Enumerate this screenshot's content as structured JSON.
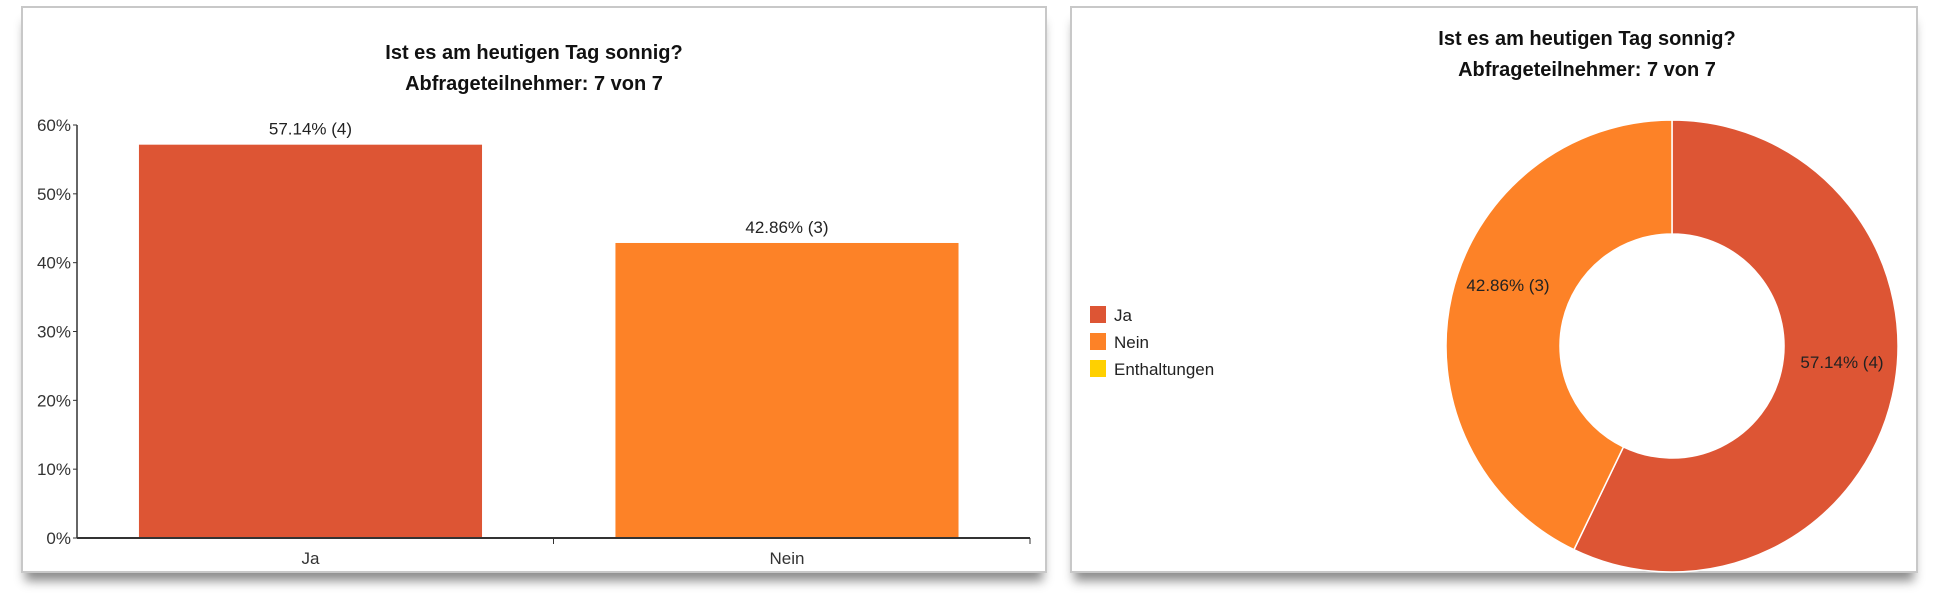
{
  "chart_data": [
    {
      "type": "bar",
      "title": "Ist es am heutigen Tag sonnig?",
      "subtitle": "Abfrageteilnehmer: 7 von 7",
      "categories": [
        "Ja",
        "Nein"
      ],
      "values": [
        57.14,
        42.86
      ],
      "counts": [
        4,
        3
      ],
      "data_labels": [
        "57.14% (4)",
        "42.86% (3)"
      ],
      "colors": [
        "#DD5534",
        "#FD8227"
      ],
      "ylim": [
        0,
        60
      ],
      "yticks": [
        "0%",
        "10%",
        "20%",
        "30%",
        "40%",
        "50%",
        "60%"
      ],
      "xlabel": "",
      "ylabel": "",
      "grid": false
    },
    {
      "type": "pie",
      "donut": true,
      "title": "Ist es am heutigen Tag sonnig?",
      "subtitle": "Abfrageteilnehmer: 7 von 7",
      "categories": [
        "Ja",
        "Nein",
        "Enthaltungen"
      ],
      "values": [
        57.14,
        42.86,
        0
      ],
      "data_labels": [
        "57.14% (4)",
        "42.86% (3)",
        ""
      ],
      "colors": [
        "#DD5534",
        "#FD8227",
        "#FFD000"
      ],
      "legend_position": "left"
    }
  ]
}
